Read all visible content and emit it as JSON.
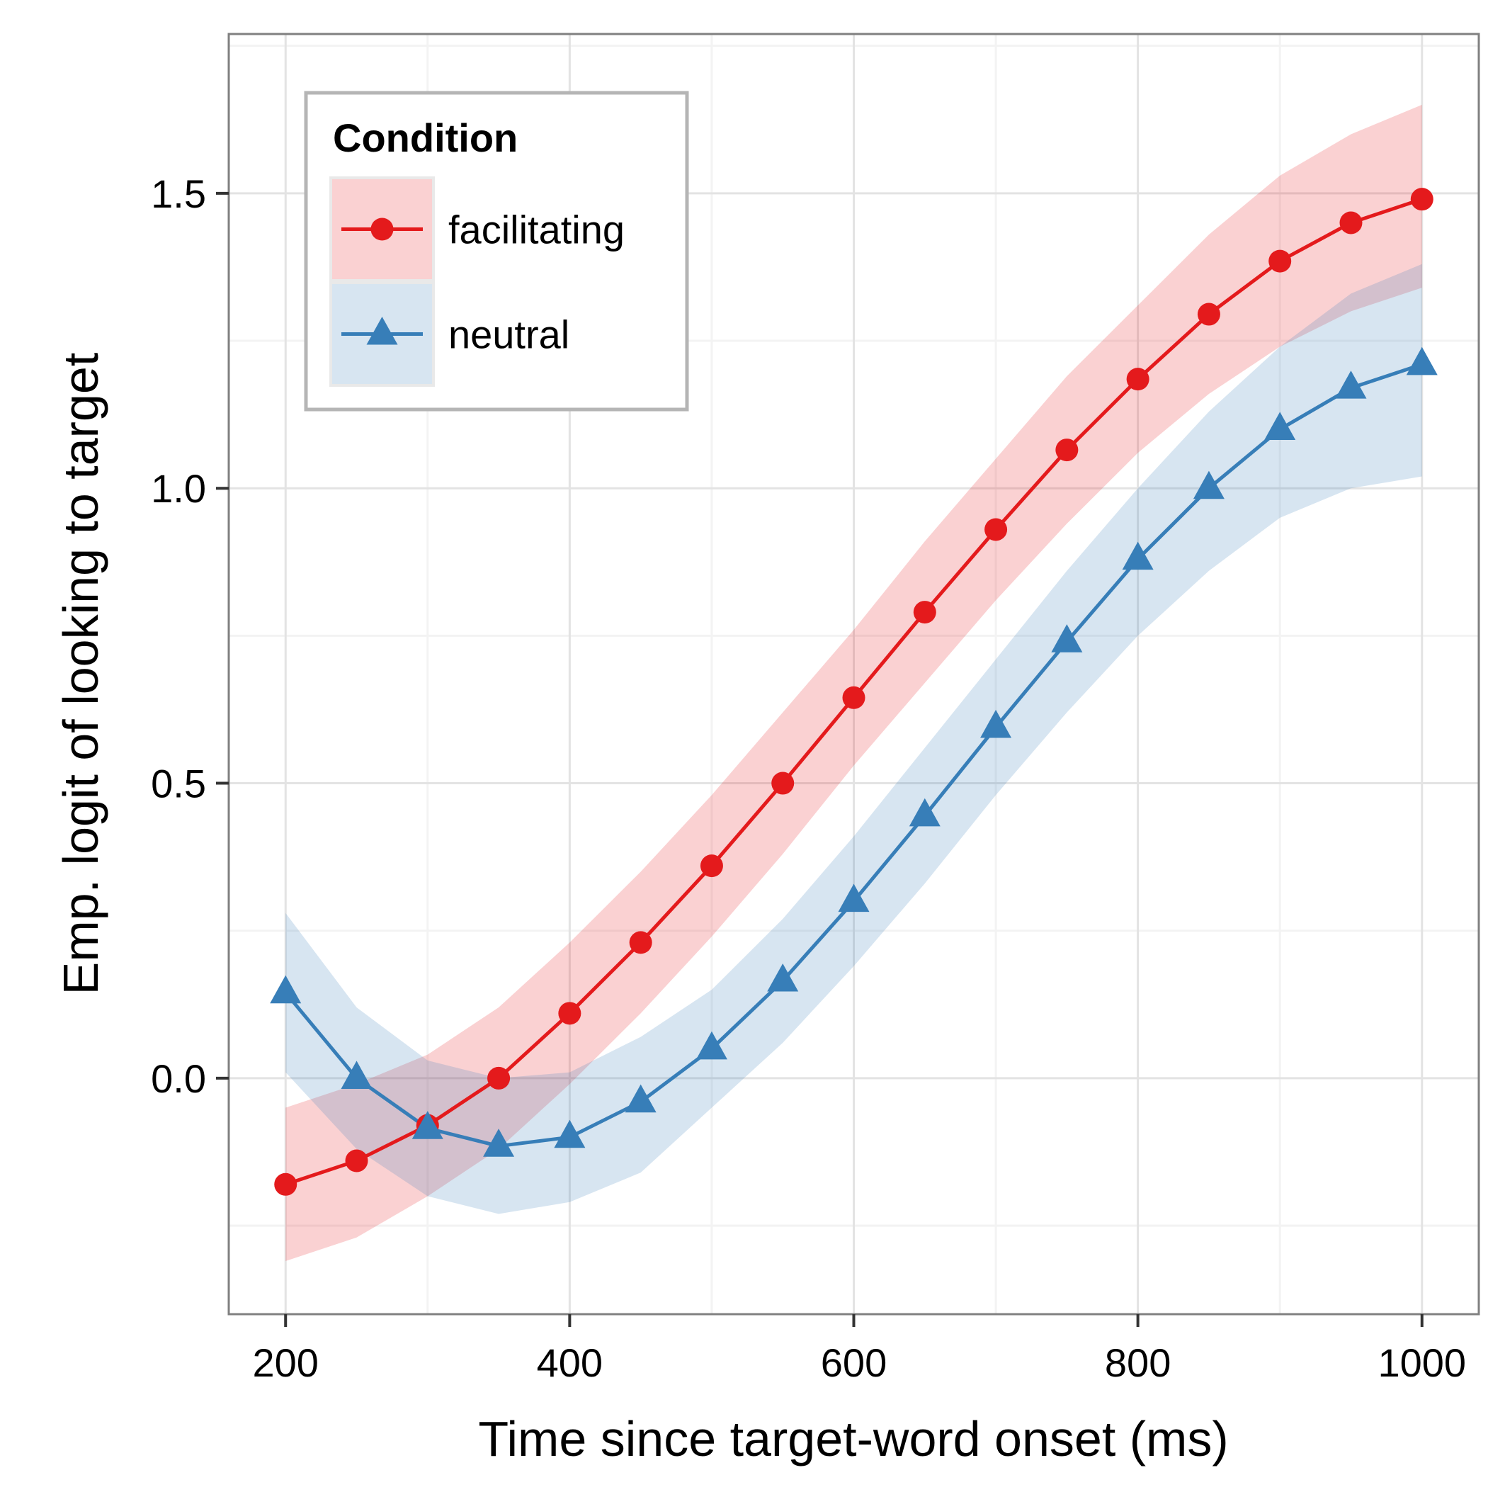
{
  "chart_data": {
    "type": "line",
    "title": "",
    "xlabel": "Time since target-word onset (ms)",
    "ylabel": "Emp. logit of looking to target",
    "xlim": [
      160,
      1040
    ],
    "ylim": [
      -0.4,
      1.77
    ],
    "x_ticks": [
      200,
      400,
      600,
      800,
      1000
    ],
    "x_tick_labels": [
      "200",
      "400",
      "600",
      "800",
      "1000"
    ],
    "y_ticks": [
      0.0,
      0.5,
      1.0,
      1.5
    ],
    "y_tick_labels": [
      "0.0",
      "0.5",
      "1.0",
      "1.5"
    ],
    "grid": true,
    "legend": {
      "title": "Condition",
      "position": "top-left"
    },
    "x": [
      200,
      250,
      300,
      350,
      400,
      450,
      500,
      550,
      600,
      650,
      700,
      750,
      800,
      850,
      900,
      950,
      1000
    ],
    "series": [
      {
        "name": "facilitating",
        "color": "#e41a1c",
        "band_color": "#f4b8ba",
        "marker": "circle",
        "values": [
          -0.18,
          -0.14,
          -0.08,
          0.0,
          0.11,
          0.23,
          0.36,
          0.5,
          0.645,
          0.79,
          0.93,
          1.065,
          1.185,
          1.295,
          1.385,
          1.45,
          1.49
        ],
        "lower": [
          -0.31,
          -0.27,
          -0.2,
          -0.12,
          -0.01,
          0.11,
          0.24,
          0.38,
          0.53,
          0.67,
          0.81,
          0.94,
          1.06,
          1.16,
          1.24,
          1.3,
          1.34
        ],
        "upper": [
          -0.05,
          -0.01,
          0.04,
          0.12,
          0.23,
          0.35,
          0.48,
          0.62,
          0.76,
          0.91,
          1.05,
          1.19,
          1.31,
          1.43,
          1.53,
          1.6,
          1.65
        ]
      },
      {
        "name": "neutral",
        "color": "#377eb8",
        "band_color": "#bcd5ea",
        "marker": "triangle",
        "values": [
          0.145,
          0.0,
          -0.085,
          -0.115,
          -0.1,
          -0.04,
          0.05,
          0.165,
          0.3,
          0.445,
          0.595,
          0.74,
          0.88,
          1.0,
          1.1,
          1.17,
          1.21
        ],
        "lower": [
          0.01,
          -0.12,
          -0.2,
          -0.23,
          -0.21,
          -0.16,
          -0.05,
          0.06,
          0.19,
          0.33,
          0.48,
          0.62,
          0.75,
          0.86,
          0.95,
          1.0,
          1.02
        ],
        "upper": [
          0.28,
          0.12,
          0.03,
          0.0,
          0.01,
          0.07,
          0.15,
          0.27,
          0.41,
          0.56,
          0.71,
          0.86,
          1.0,
          1.13,
          1.24,
          1.33,
          1.38
        ]
      }
    ]
  }
}
